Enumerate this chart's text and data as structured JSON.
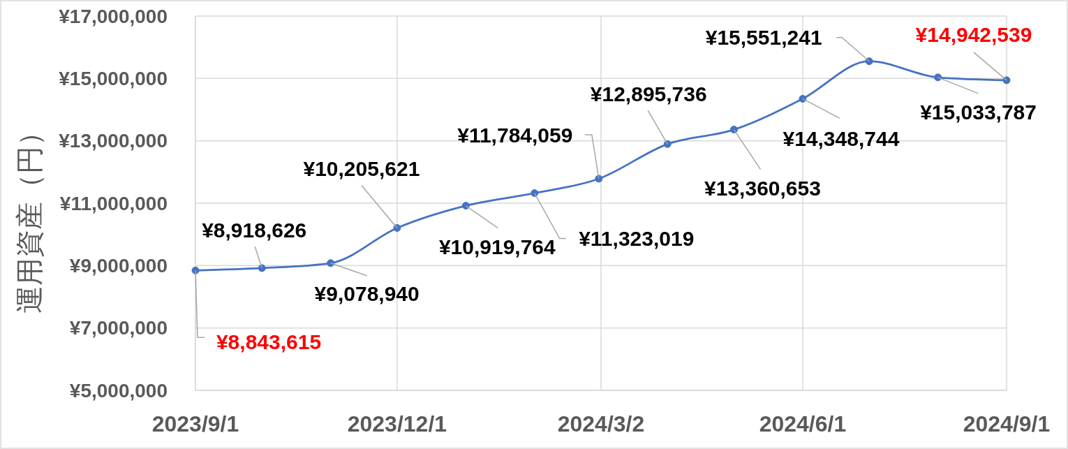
{
  "chart_data": {
    "type": "line",
    "ylabel": "運用資産（円）",
    "x": [
      "2023-09-01",
      "2023-10-01",
      "2023-11-01",
      "2023-12-01",
      "2024-01-01",
      "2024-02-01",
      "2024-03-01",
      "2024-04-01",
      "2024-05-01",
      "2024-06-01",
      "2024-07-01",
      "2024-08-01",
      "2024-09-01"
    ],
    "series": [
      {
        "color": "#4472c4",
        "values": [
          8843615,
          8918626,
          9078940,
          10205621,
          10919764,
          11323019,
          11784059,
          12895736,
          13360653,
          14348744,
          15551241,
          15033787,
          14942539
        ],
        "value_labels": [
          "¥8,843,615",
          "¥8,918,626",
          "¥9,078,940",
          "¥10,205,621",
          "¥10,919,764",
          "¥11,323,019",
          "¥11,784,059",
          "¥12,895,736",
          "¥13,360,653",
          "¥14,348,744",
          "¥15,551,241",
          "¥15,033,787",
          "¥14,942,539"
        ]
      }
    ],
    "xlim": [
      "2023-09-01",
      "2024-09-01"
    ],
    "xticks": [
      {
        "value": "2023-09-01",
        "label": "2023/9/1"
      },
      {
        "value": "2023-12-01",
        "label": "2023/12/1"
      },
      {
        "value": "2024-03-02",
        "label": "2024/3/2"
      },
      {
        "value": "2024-06-01",
        "label": "2024/6/1"
      },
      {
        "value": "2024-09-01",
        "label": "2024/9/1"
      }
    ],
    "ylim": [
      5000000,
      17000000
    ],
    "yticks": [
      {
        "value": 5000000,
        "label": "¥5,000,000"
      },
      {
        "value": 7000000,
        "label": "¥7,000,000"
      },
      {
        "value": 9000000,
        "label": "¥9,000,000"
      },
      {
        "value": 11000000,
        "label": "¥11,000,000"
      },
      {
        "value": 13000000,
        "label": "¥13,000,000"
      },
      {
        "value": 15000000,
        "label": "¥15,000,000"
      },
      {
        "value": 17000000,
        "label": "¥17,000,000"
      }
    ],
    "grid": true,
    "marker": "circle",
    "line_style": "solid"
  }
}
